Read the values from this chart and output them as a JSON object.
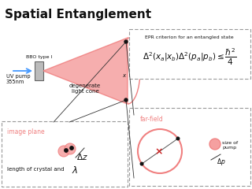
{
  "title": "Spatial Entanglement",
  "title_fontsize": 11,
  "bg_color": "#ffffff",
  "salmon_color": "#f08080",
  "salmon_fill": "#f5a0a0",
  "blue_color": "#4499ff",
  "red_color": "#cc2222",
  "dark_color": "#111111",
  "epr_text": "EPR criterion for an entangled state",
  "epr_formula": "$\\Delta^2(x_a|x_b)\\Delta^2(p_a|p_b) \\leq \\dfrac{\\hbar^2}{4}$",
  "bbo_label": "BBO type I",
  "pump_label": "UV pump\n355nm",
  "cone_label": "degenerate\nlight cone",
  "farfield_label": "far-field",
  "size_pump_label": "size of\npump",
  "delta_p_label": "$\\Delta p$",
  "image_plane_label": "image plane",
  "crystal_label": "length of crystal and",
  "delta_z_label": "$\\Delta z$",
  "lambda_label": "$\\lambda$"
}
